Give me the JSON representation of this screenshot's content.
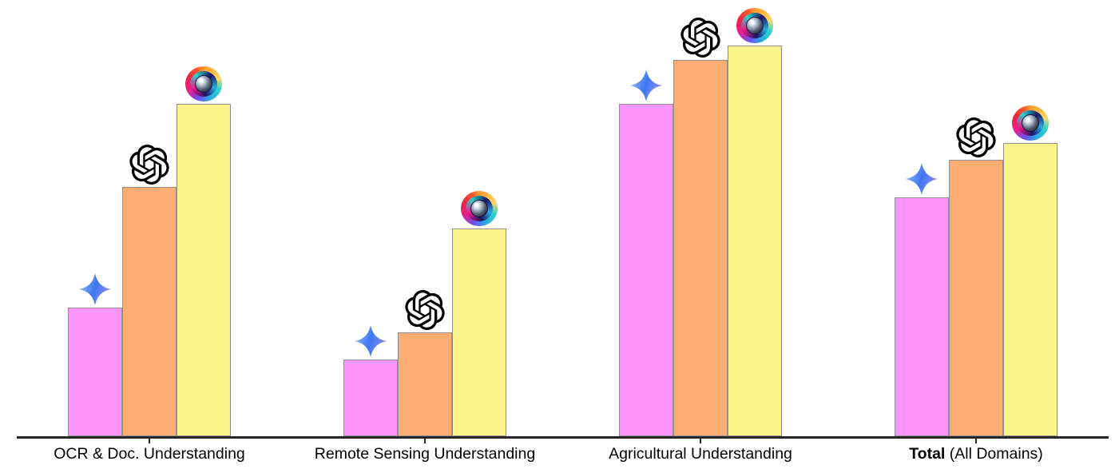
{
  "figure": {
    "background": "#ffffff",
    "description": "Grouped bar chart comparing three vision-language models (identified only by icons: Gemini sparkle, OpenAI logo, rainbow eye logo) across four evaluation domains. No title, no y-axis, no numeric labels shown."
  },
  "chart_data": {
    "type": "bar",
    "categories": [
      {
        "bold": "",
        "text": "OCR & Doc. Understanding"
      },
      {
        "bold": "",
        "text": "Remote Sensing Understanding"
      },
      {
        "bold": "",
        "text": "Agricultural Understanding"
      },
      {
        "bold": "Total",
        "text": " (All Domains)"
      }
    ],
    "series": [
      {
        "name": "gemini",
        "icon": "gemini-sparkle-icon",
        "color": "#fc96fa",
        "border_color": "#8f8f8f",
        "values": [
          31,
          18.5,
          80,
          57.5
        ]
      },
      {
        "name": "openai",
        "icon": "openai-logo-icon",
        "color": "#fbad74",
        "border_color": "#8f8f8f",
        "values": [
          60,
          25,
          90.5,
          66.5
        ]
      },
      {
        "name": "eye-logo-model",
        "icon": "rainbow-eye-icon",
        "color": "#fbf48b",
        "border_color": "#8f8f8f",
        "values": [
          80,
          50,
          94,
          70.5
        ]
      }
    ],
    "ylim": [
      0,
      100
    ],
    "y_axis_shown": false,
    "grid": false,
    "legend": "none (series identified by icons placed above each bar)",
    "value_note": "Figure shows no numeric labels; values are bar heights estimated as percent of plot height",
    "axis_color": "#262626",
    "xlabel_font_size_px": 19.5
  },
  "icons": {
    "gemini_sparkle": {
      "gradient": [
        "#8fb8fb",
        "#3e78f2",
        "#9a8cfa"
      ]
    },
    "openai_logo": {
      "color": "#000000"
    },
    "rainbow_eye": {
      "colors": [
        "#ff9a2e",
        "#ffd86a",
        "#2bd4c8",
        "#29abe2",
        "#e91e8c",
        "#e8263d",
        "#1b1464"
      ]
    }
  }
}
